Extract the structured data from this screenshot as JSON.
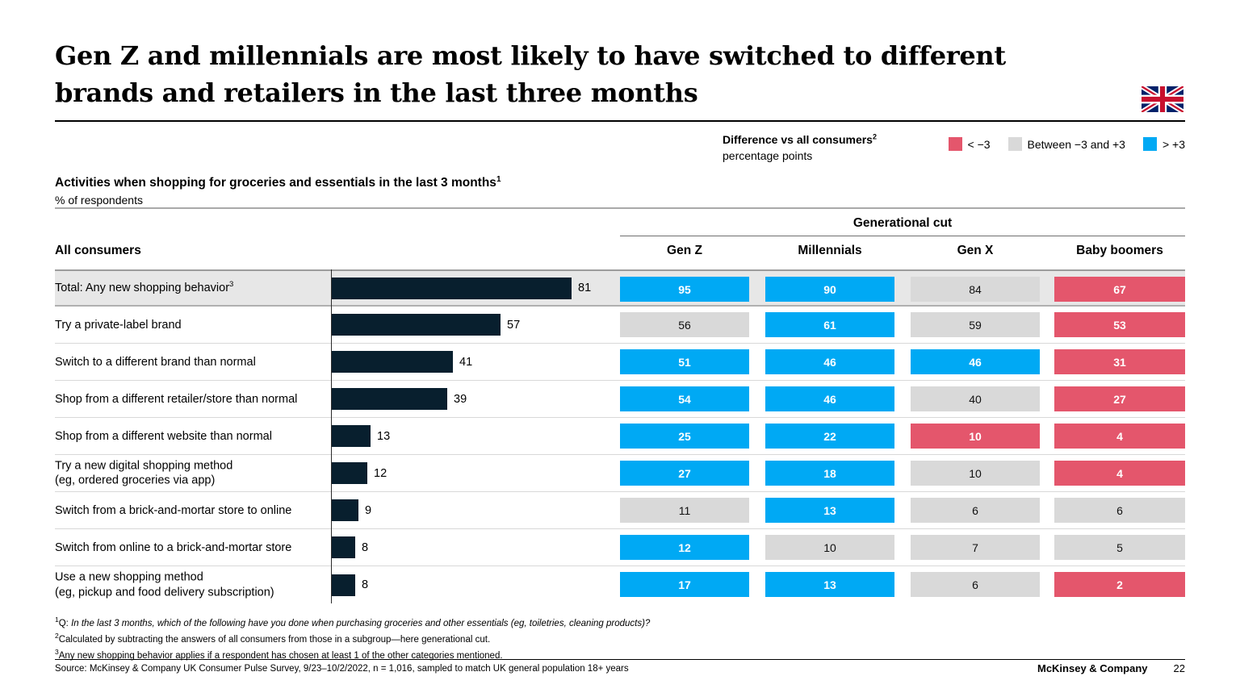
{
  "slide": {
    "title": "Gen Z and millennials are most likely to have switched to different brands and retailers in the last three months",
    "footer": {
      "source": "Source: McKinsey & Company UK Consumer Pulse Survey, 9/23–10/2/2022, n = 1,016, sampled to match UK general population 18+ years",
      "brand": "McKinsey & Company",
      "page_number": "22"
    }
  },
  "legend": {
    "title": "Difference vs all consumers",
    "title_sup": "2",
    "subtitle": "percentage points",
    "items": [
      {
        "label": "< −3",
        "color": "#e4566c"
      },
      {
        "label": "Between −3 and +3",
        "color": "#d9d9d9"
      },
      {
        "label": "> +3",
        "color": "#00a9f4"
      }
    ]
  },
  "chart_header": {
    "title": "Activities when shopping for groceries and essentials in the last 3 months",
    "title_sup": "1",
    "subtitle": "% of respondents",
    "left_column_header": "All consumers",
    "group_header": "Generational cut",
    "columns": [
      "Gen Z",
      "Millennials",
      "Gen X",
      "Baby boomers"
    ]
  },
  "chart_data": {
    "type": "bar",
    "title": "Activities when shopping for groceries and essentials in the last 3 months",
    "value_unit": "% of respondents",
    "xlim": [
      0,
      100
    ],
    "color_rule": "cell color = difference vs all consumers in percentage points: red < −3, gray between −3 and +3, blue > +3",
    "categories": [
      "Total: Any new shopping behavior",
      "Try a private-label brand",
      "Switch to a different brand than normal",
      "Shop from a different retailer/store than normal",
      "Shop from a different website than normal",
      "Try a new digital shopping method (eg, ordered groceries via app)",
      "Switch from a brick-and-mortar store to online",
      "Switch from online to a brick-and-mortar store",
      "Use a new shopping method (eg, pickup and food delivery subscription)"
    ],
    "series": [
      {
        "name": "All consumers",
        "values": [
          81,
          57,
          41,
          39,
          13,
          12,
          9,
          8,
          8
        ]
      },
      {
        "name": "Gen Z",
        "values": [
          95,
          56,
          51,
          54,
          25,
          27,
          11,
          12,
          17
        ]
      },
      {
        "name": "Millennials",
        "values": [
          90,
          61,
          46,
          46,
          22,
          18,
          13,
          10,
          13
        ]
      },
      {
        "name": "Gen X",
        "values": [
          84,
          59,
          46,
          40,
          10,
          10,
          6,
          7,
          6
        ]
      },
      {
        "name": "Baby boomers",
        "values": [
          67,
          53,
          31,
          27,
          4,
          4,
          6,
          5,
          2
        ]
      }
    ],
    "rows": [
      {
        "label": "Total: Any new shopping behavior",
        "sup": "3",
        "all": 81,
        "highlight": true,
        "cells": [
          {
            "v": 95,
            "c": "blue"
          },
          {
            "v": 90,
            "c": "blue"
          },
          {
            "v": 84,
            "c": "gray"
          },
          {
            "v": 67,
            "c": "red"
          }
        ]
      },
      {
        "label": "Try a private-label brand",
        "all": 57,
        "cells": [
          {
            "v": 56,
            "c": "gray"
          },
          {
            "v": 61,
            "c": "blue"
          },
          {
            "v": 59,
            "c": "gray"
          },
          {
            "v": 53,
            "c": "red"
          }
        ]
      },
      {
        "label": "Switch to a different brand than normal",
        "all": 41,
        "cells": [
          {
            "v": 51,
            "c": "blue"
          },
          {
            "v": 46,
            "c": "blue"
          },
          {
            "v": 46,
            "c": "blue"
          },
          {
            "v": 31,
            "c": "red"
          }
        ]
      },
      {
        "label": "Shop from a different retailer/store than normal",
        "all": 39,
        "cells": [
          {
            "v": 54,
            "c": "blue"
          },
          {
            "v": 46,
            "c": "blue"
          },
          {
            "v": 40,
            "c": "gray"
          },
          {
            "v": 27,
            "c": "red"
          }
        ]
      },
      {
        "label": "Shop from a different website than normal",
        "all": 13,
        "cells": [
          {
            "v": 25,
            "c": "blue"
          },
          {
            "v": 22,
            "c": "blue"
          },
          {
            "v": 10,
            "c": "red"
          },
          {
            "v": 4,
            "c": "red"
          }
        ]
      },
      {
        "label": "Try a new digital shopping method",
        "label2": "(eg, ordered groceries via app)",
        "all": 12,
        "cells": [
          {
            "v": 27,
            "c": "blue"
          },
          {
            "v": 18,
            "c": "blue"
          },
          {
            "v": 10,
            "c": "gray"
          },
          {
            "v": 4,
            "c": "red"
          }
        ]
      },
      {
        "label": "Switch from a brick-and-mortar store to online",
        "all": 9,
        "cells": [
          {
            "v": 11,
            "c": "gray"
          },
          {
            "v": 13,
            "c": "blue"
          },
          {
            "v": 6,
            "c": "gray"
          },
          {
            "v": 6,
            "c": "gray"
          }
        ]
      },
      {
        "label": "Switch from online to a brick-and-mortar store",
        "all": 8,
        "cells": [
          {
            "v": 12,
            "c": "blue"
          },
          {
            "v": 10,
            "c": "gray"
          },
          {
            "v": 7,
            "c": "gray"
          },
          {
            "v": 5,
            "c": "gray"
          }
        ]
      },
      {
        "label": "Use a new shopping method",
        "label2": "(eg, pickup and food delivery subscription)",
        "all": 8,
        "cells": [
          {
            "v": 17,
            "c": "blue"
          },
          {
            "v": 13,
            "c": "blue"
          },
          {
            "v": 6,
            "c": "gray"
          },
          {
            "v": 2,
            "c": "red"
          }
        ]
      }
    ]
  },
  "colors": {
    "bar_navy": "#081f2e",
    "blue": "#00a9f4",
    "red": "#e4566c",
    "gray": "#d9d9d9",
    "highlight_band": "#e7e7e7"
  },
  "footnotes": [
    {
      "sup": "1",
      "prefix": "Q: ",
      "italic": "In the last 3 months, which of the following have you done when purchasing groceries and other essentials (eg, toiletries, cleaning products)?"
    },
    {
      "sup": "2",
      "text": "Calculated by subtracting the answers of all consumers from those in a subgroup—here generational cut."
    },
    {
      "sup": "3",
      "text": "Any new shopping behavior applies if a respondent has chosen at least 1 of the other categories mentioned."
    }
  ]
}
